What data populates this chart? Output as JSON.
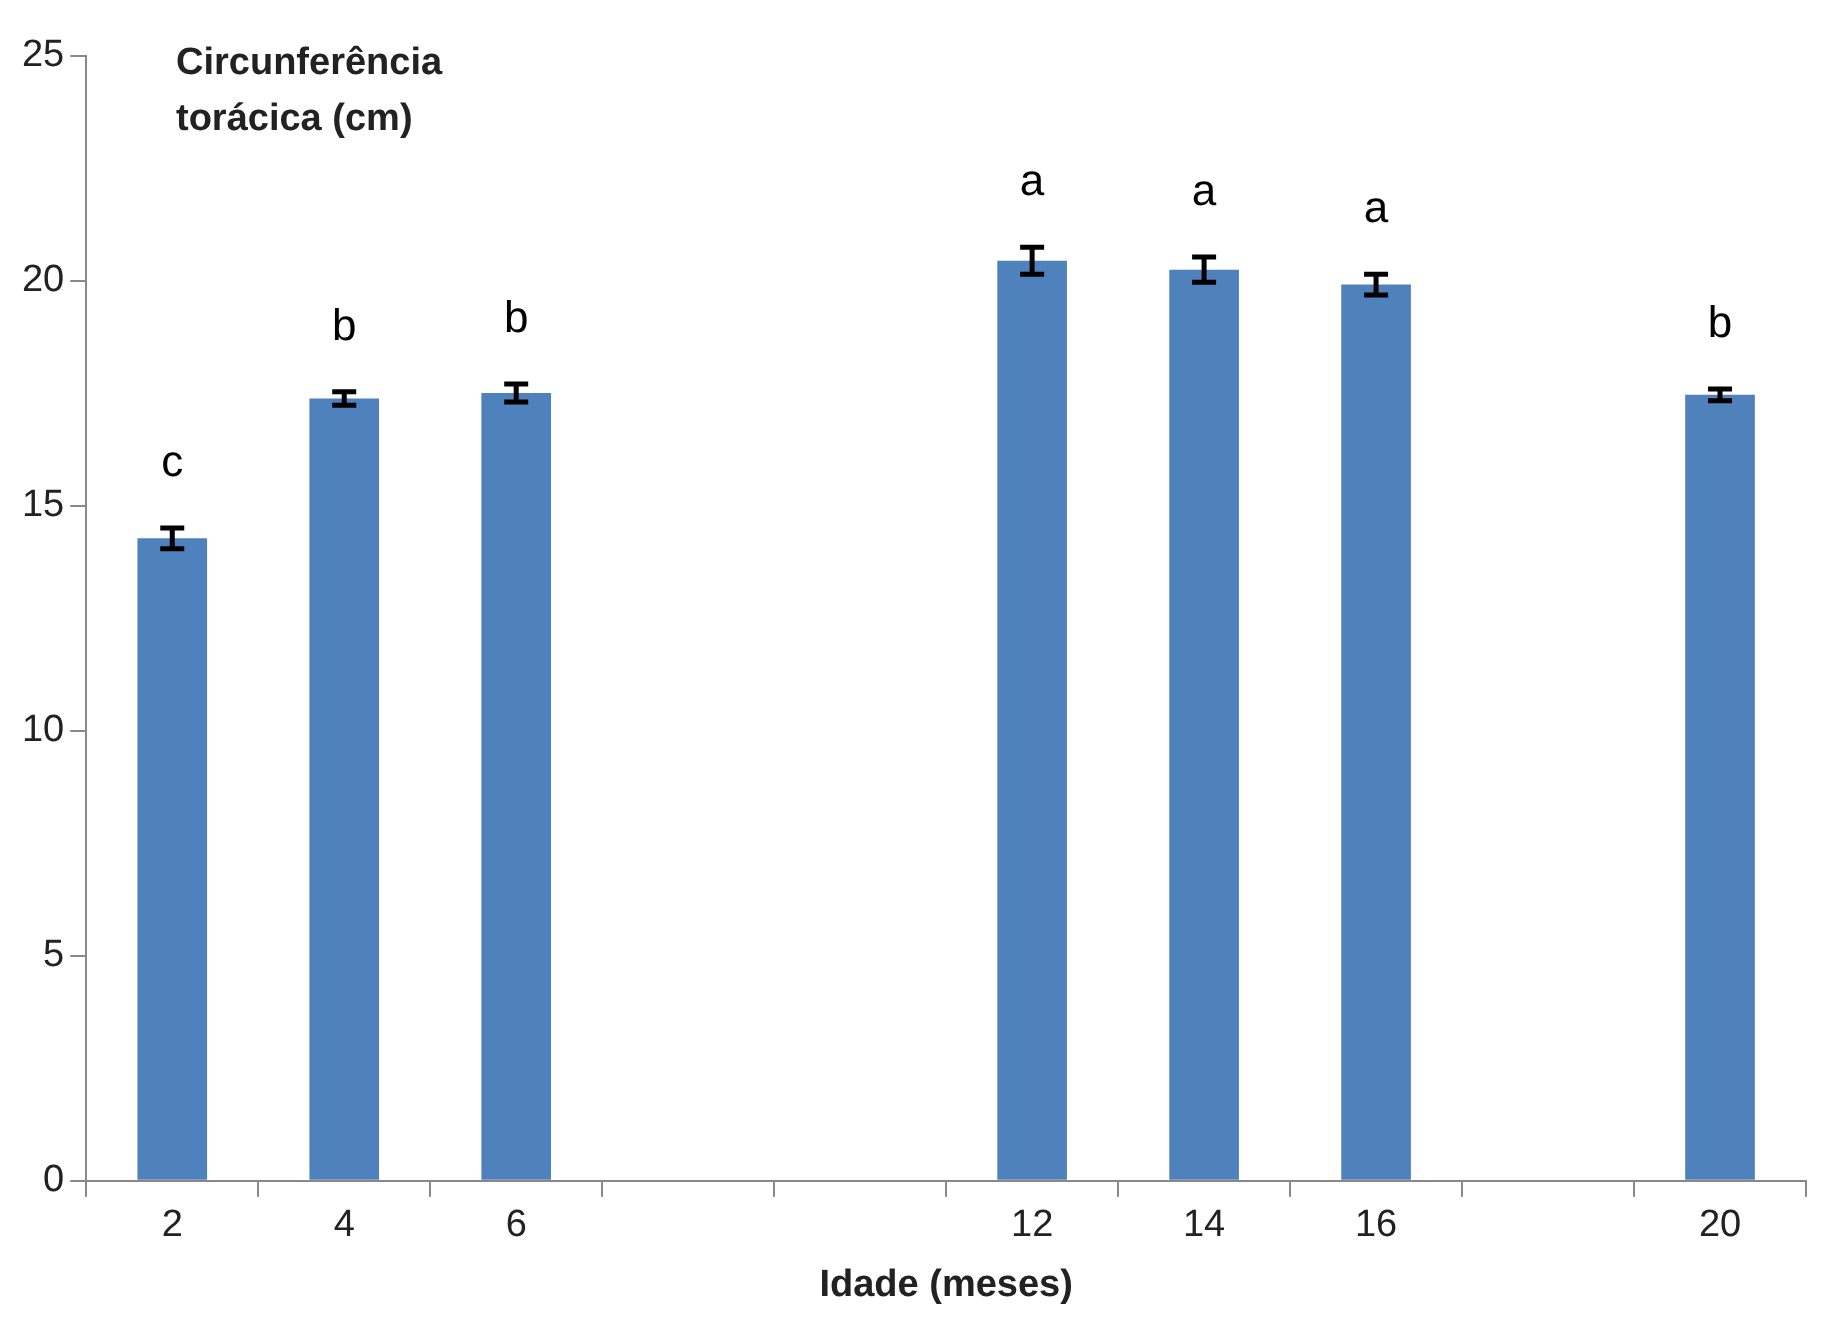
{
  "chart_data": {
    "type": "bar",
    "xlabel": "Idade (meses)",
    "ylabel": "Circunferência torácica (cm)",
    "categories": [
      "2",
      "4",
      "6",
      null,
      null,
      "12",
      "14",
      "16",
      null,
      "20"
    ],
    "values": [
      14.28,
      17.39,
      17.51,
      null,
      null,
      20.45,
      20.25,
      19.92,
      null,
      17.47
    ],
    "errors": [
      0.23,
      0.15,
      0.2,
      null,
      null,
      0.3,
      0.28,
      0.23,
      null,
      0.13
    ],
    "color": "#4f81bd",
    "ylim": [
      0,
      25
    ],
    "yticks": [
      0,
      5,
      10,
      15,
      20,
      25
    ],
    "grid": false,
    "legend": false,
    "annotations": [
      "c",
      "b",
      "b",
      "a",
      "a",
      "a",
      "b"
    ]
  }
}
